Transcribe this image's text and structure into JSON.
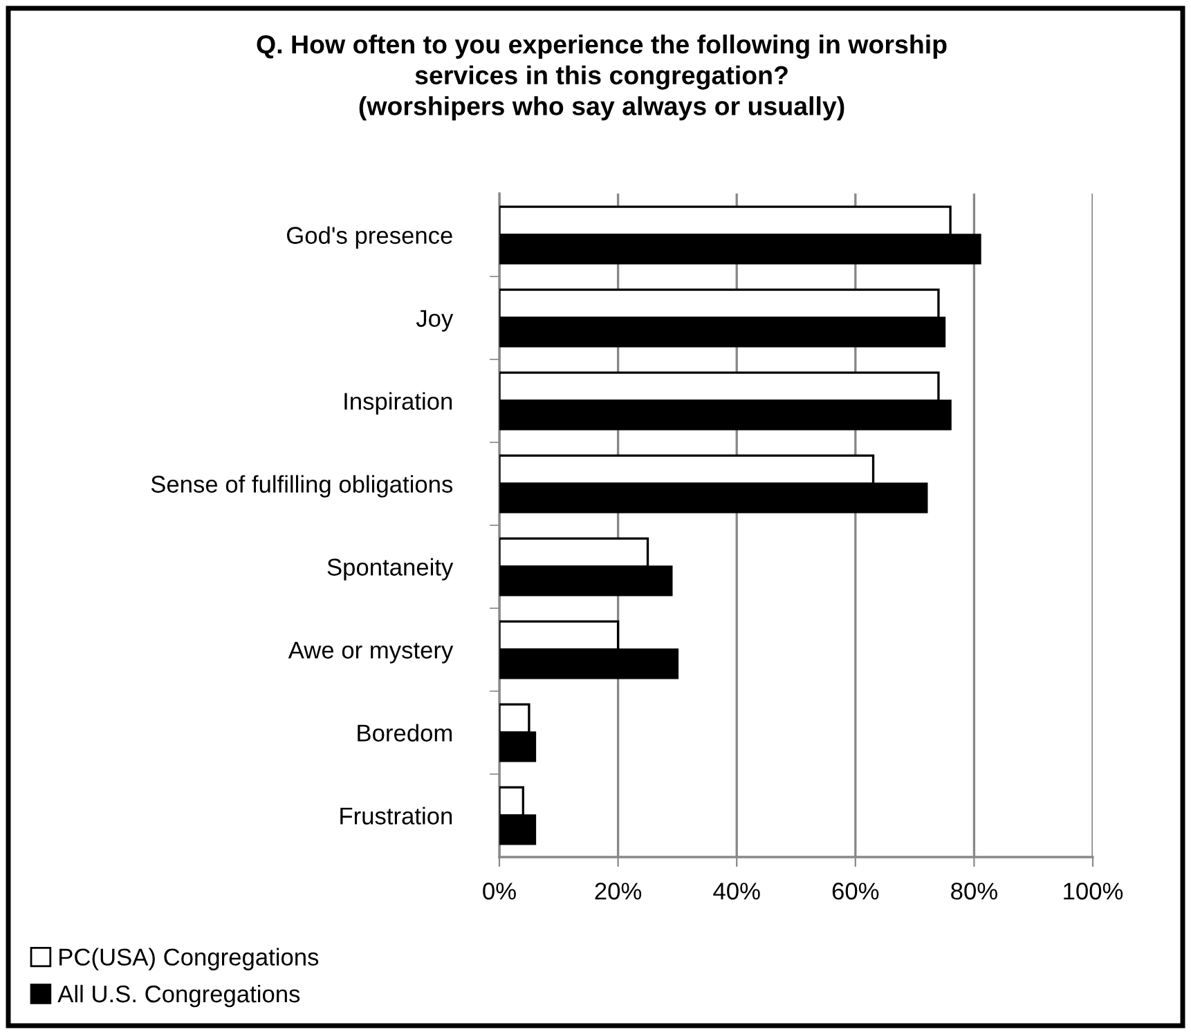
{
  "chart_data": {
    "type": "bar",
    "orientation": "horizontal",
    "title": "Q. How often to you experience the following in worship\nservices in this congregation?\n(worshipers who say always or usually)",
    "categories": [
      "God's presence",
      "Joy",
      "Inspiration",
      "Sense of fulfilling obligations",
      "Spontaneity",
      "Awe or mystery",
      "Boredom",
      "Frustration"
    ],
    "series": [
      {
        "name": "PC(USA) Congregations",
        "color": "#ffffff",
        "values": [
          76,
          74,
          74,
          63,
          25,
          20,
          5,
          4
        ]
      },
      {
        "name": "All U.S. Congregations",
        "color": "#000000",
        "values": [
          81,
          75,
          76,
          72,
          29,
          30,
          6,
          6
        ]
      }
    ],
    "xlim": [
      0,
      100
    ],
    "xticks": [
      {
        "value": 0,
        "label": "0%"
      },
      {
        "value": 20,
        "label": "20%"
      },
      {
        "value": 40,
        "label": "40%"
      },
      {
        "value": 60,
        "label": "60%"
      },
      {
        "value": 80,
        "label": "80%"
      },
      {
        "value": 100,
        "label": "100%"
      }
    ],
    "grid": "x",
    "legend": "bottom left"
  }
}
